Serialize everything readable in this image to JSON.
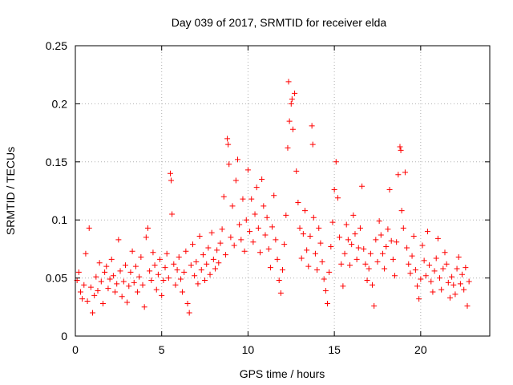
{
  "chart_data": {
    "type": "scatter",
    "title": "Day 039 of 2017, SRMTID for receiver elda",
    "xlabel": "GPS time / hours",
    "ylabel": "SRMTID / TECUs",
    "xlim": [
      0,
      24
    ],
    "ylim": [
      0,
      0.25
    ],
    "x_ticks": [
      0,
      5,
      10,
      15,
      20
    ],
    "x_tick_labels": [
      "0",
      "5",
      "10",
      "15",
      "20"
    ],
    "y_ticks": [
      0,
      0.05,
      0.1,
      0.15,
      0.2,
      0.25
    ],
    "y_tick_labels": [
      "0",
      "0.05",
      "0.1",
      "0.15",
      "0.2",
      "0.25"
    ],
    "grid": true,
    "marker": "+",
    "color": "#ff0000",
    "series": [
      {
        "name": "SRMTID",
        "points": [
          [
            0.1,
            0.048
          ],
          [
            0.2,
            0.055
          ],
          [
            0.3,
            0.038
          ],
          [
            0.4,
            0.032
          ],
          [
            0.5,
            0.044
          ],
          [
            0.6,
            0.071
          ],
          [
            0.7,
            0.03
          ],
          [
            0.8,
            0.093
          ],
          [
            0.9,
            0.042
          ],
          [
            1.0,
            0.02
          ],
          [
            1.1,
            0.035
          ],
          [
            1.2,
            0.051
          ],
          [
            1.3,
            0.039
          ],
          [
            1.4,
            0.063
          ],
          [
            1.5,
            0.047
          ],
          [
            1.6,
            0.028
          ],
          [
            1.7,
            0.055
          ],
          [
            1.8,
            0.06
          ],
          [
            1.9,
            0.041
          ],
          [
            2.0,
            0.049
          ],
          [
            2.1,
            0.066
          ],
          [
            2.2,
            0.052
          ],
          [
            2.3,
            0.038
          ],
          [
            2.4,
            0.045
          ],
          [
            2.5,
            0.083
          ],
          [
            2.6,
            0.056
          ],
          [
            2.7,
            0.034
          ],
          [
            2.8,
            0.047
          ],
          [
            2.9,
            0.061
          ],
          [
            3.0,
            0.029
          ],
          [
            3.1,
            0.043
          ],
          [
            3.2,
            0.055
          ],
          [
            3.3,
            0.073
          ],
          [
            3.4,
            0.046
          ],
          [
            3.5,
            0.06
          ],
          [
            3.6,
            0.038
          ],
          [
            3.7,
            0.051
          ],
          [
            3.8,
            0.068
          ],
          [
            3.9,
            0.044
          ],
          [
            4.0,
            0.025
          ],
          [
            4.1,
            0.085
          ],
          [
            4.2,
            0.093
          ],
          [
            4.3,
            0.056
          ],
          [
            4.4,
            0.048
          ],
          [
            4.5,
            0.072
          ],
          [
            4.6,
            0.061
          ],
          [
            4.7,
            0.04
          ],
          [
            4.8,
            0.053
          ],
          [
            4.9,
            0.066
          ],
          [
            5.0,
            0.035
          ],
          [
            5.1,
            0.048
          ],
          [
            5.2,
            0.059
          ],
          [
            5.3,
            0.071
          ],
          [
            5.4,
            0.05
          ],
          [
            5.5,
            0.14
          ],
          [
            5.55,
            0.134
          ],
          [
            5.6,
            0.105
          ],
          [
            5.7,
            0.062
          ],
          [
            5.8,
            0.044
          ],
          [
            5.9,
            0.057
          ],
          [
            6.0,
            0.068
          ],
          [
            6.1,
            0.049
          ],
          [
            6.2,
            0.038
          ],
          [
            6.3,
            0.055
          ],
          [
            6.4,
            0.073
          ],
          [
            6.5,
            0.028
          ],
          [
            6.6,
            0.02
          ],
          [
            6.7,
            0.061
          ],
          [
            6.8,
            0.079
          ],
          [
            6.9,
            0.052
          ],
          [
            7.0,
            0.064
          ],
          [
            7.1,
            0.045
          ],
          [
            7.2,
            0.086
          ],
          [
            7.3,
            0.057
          ],
          [
            7.4,
            0.07
          ],
          [
            7.5,
            0.048
          ],
          [
            7.6,
            0.062
          ],
          [
            7.7,
            0.076
          ],
          [
            7.8,
            0.053
          ],
          [
            7.9,
            0.089
          ],
          [
            8.0,
            0.066
          ],
          [
            8.1,
            0.058
          ],
          [
            8.2,
            0.074
          ],
          [
            8.3,
            0.063
          ],
          [
            8.4,
            0.08
          ],
          [
            8.5,
            0.092
          ],
          [
            8.6,
            0.12
          ],
          [
            8.7,
            0.07
          ],
          [
            8.8,
            0.17
          ],
          [
            8.85,
            0.165
          ],
          [
            8.9,
            0.148
          ],
          [
            9.0,
            0.085
          ],
          [
            9.1,
            0.112
          ],
          [
            9.2,
            0.078
          ],
          [
            9.3,
            0.134
          ],
          [
            9.4,
            0.152
          ],
          [
            9.5,
            0.096
          ],
          [
            9.6,
            0.083
          ],
          [
            9.7,
            0.118
          ],
          [
            9.8,
            0.073
          ],
          [
            9.9,
            0.1
          ],
          [
            10.0,
            0.143
          ],
          [
            10.1,
            0.09
          ],
          [
            10.2,
            0.118
          ],
          [
            10.3,
            0.081
          ],
          [
            10.4,
            0.105
          ],
          [
            10.5,
            0.128
          ],
          [
            10.6,
            0.093
          ],
          [
            10.7,
            0.072
          ],
          [
            10.8,
            0.135
          ],
          [
            10.9,
            0.112
          ],
          [
            11.0,
            0.087
          ],
          [
            11.1,
            0.102
          ],
          [
            11.2,
            0.075
          ],
          [
            11.3,
            0.059
          ],
          [
            11.4,
            0.094
          ],
          [
            11.5,
            0.121
          ],
          [
            11.6,
            0.083
          ],
          [
            11.7,
            0.066
          ],
          [
            11.8,
            0.048
          ],
          [
            11.9,
            0.037
          ],
          [
            12.0,
            0.057
          ],
          [
            12.1,
            0.079
          ],
          [
            12.2,
            0.104
          ],
          [
            12.3,
            0.162
          ],
          [
            12.35,
            0.219
          ],
          [
            12.4,
            0.185
          ],
          [
            12.5,
            0.2
          ],
          [
            12.55,
            0.204
          ],
          [
            12.6,
            0.178
          ],
          [
            12.7,
            0.209
          ],
          [
            12.8,
            0.142
          ],
          [
            12.9,
            0.115
          ],
          [
            13.0,
            0.093
          ],
          [
            13.1,
            0.067
          ],
          [
            13.2,
            0.088
          ],
          [
            13.3,
            0.108
          ],
          [
            13.4,
            0.074
          ],
          [
            13.5,
            0.06
          ],
          [
            13.6,
            0.086
          ],
          [
            13.7,
            0.181
          ],
          [
            13.75,
            0.165
          ],
          [
            13.8,
            0.102
          ],
          [
            13.9,
            0.071
          ],
          [
            14.0,
            0.057
          ],
          [
            14.1,
            0.093
          ],
          [
            14.2,
            0.08
          ],
          [
            14.3,
            0.064
          ],
          [
            14.4,
            0.049
          ],
          [
            14.5,
            0.039
          ],
          [
            14.6,
            0.028
          ],
          [
            14.7,
            0.055
          ],
          [
            14.8,
            0.077
          ],
          [
            14.9,
            0.098
          ],
          [
            15.0,
            0.126
          ],
          [
            15.1,
            0.15
          ],
          [
            15.2,
            0.119
          ],
          [
            15.3,
            0.085
          ],
          [
            15.4,
            0.062
          ],
          [
            15.5,
            0.043
          ],
          [
            15.6,
            0.071
          ],
          [
            15.7,
            0.096
          ],
          [
            15.8,
            0.083
          ],
          [
            15.9,
            0.061
          ],
          [
            16.0,
            0.079
          ],
          [
            16.1,
            0.104
          ],
          [
            16.2,
            0.088
          ],
          [
            16.3,
            0.066
          ],
          [
            16.4,
            0.076
          ],
          [
            16.5,
            0.093
          ],
          [
            16.6,
            0.129
          ],
          [
            16.7,
            0.075
          ],
          [
            16.8,
            0.062
          ],
          [
            16.9,
            0.048
          ],
          [
            17.0,
            0.058
          ],
          [
            17.1,
            0.071
          ],
          [
            17.2,
            0.044
          ],
          [
            17.3,
            0.026
          ],
          [
            17.4,
            0.083
          ],
          [
            17.5,
            0.064
          ],
          [
            17.6,
            0.099
          ],
          [
            17.7,
            0.087
          ],
          [
            17.8,
            0.071
          ],
          [
            17.9,
            0.058
          ],
          [
            18.0,
            0.077
          ],
          [
            18.1,
            0.092
          ],
          [
            18.2,
            0.126
          ],
          [
            18.3,
            0.082
          ],
          [
            18.4,
            0.066
          ],
          [
            18.5,
            0.052
          ],
          [
            18.6,
            0.081
          ],
          [
            18.7,
            0.139
          ],
          [
            18.8,
            0.163
          ],
          [
            18.85,
            0.16
          ],
          [
            18.9,
            0.108
          ],
          [
            19.0,
            0.093
          ],
          [
            19.1,
            0.141
          ],
          [
            19.2,
            0.076
          ],
          [
            19.3,
            0.062
          ],
          [
            19.4,
            0.054
          ],
          [
            19.5,
            0.069
          ],
          [
            19.6,
            0.086
          ],
          [
            19.7,
            0.057
          ],
          [
            19.8,
            0.043
          ],
          [
            19.9,
            0.032
          ],
          [
            20.0,
            0.049
          ],
          [
            20.1,
            0.078
          ],
          [
            20.2,
            0.065
          ],
          [
            20.3,
            0.052
          ],
          [
            20.4,
            0.09
          ],
          [
            20.5,
            0.061
          ],
          [
            20.6,
            0.047
          ],
          [
            20.7,
            0.038
          ],
          [
            20.8,
            0.056
          ],
          [
            20.9,
            0.067
          ],
          [
            21.0,
            0.084
          ],
          [
            21.1,
            0.05
          ],
          [
            21.2,
            0.04
          ],
          [
            21.3,
            0.058
          ],
          [
            21.4,
            0.072
          ],
          [
            21.5,
            0.062
          ],
          [
            21.6,
            0.046
          ],
          [
            21.7,
            0.033
          ],
          [
            21.8,
            0.051
          ],
          [
            21.9,
            0.044
          ],
          [
            22.0,
            0.036
          ],
          [
            22.1,
            0.058
          ],
          [
            22.2,
            0.068
          ],
          [
            22.3,
            0.045
          ],
          [
            22.4,
            0.053
          ],
          [
            22.5,
            0.04
          ],
          [
            22.6,
            0.059
          ],
          [
            22.7,
            0.026
          ],
          [
            22.8,
            0.047
          ]
        ]
      }
    ]
  }
}
